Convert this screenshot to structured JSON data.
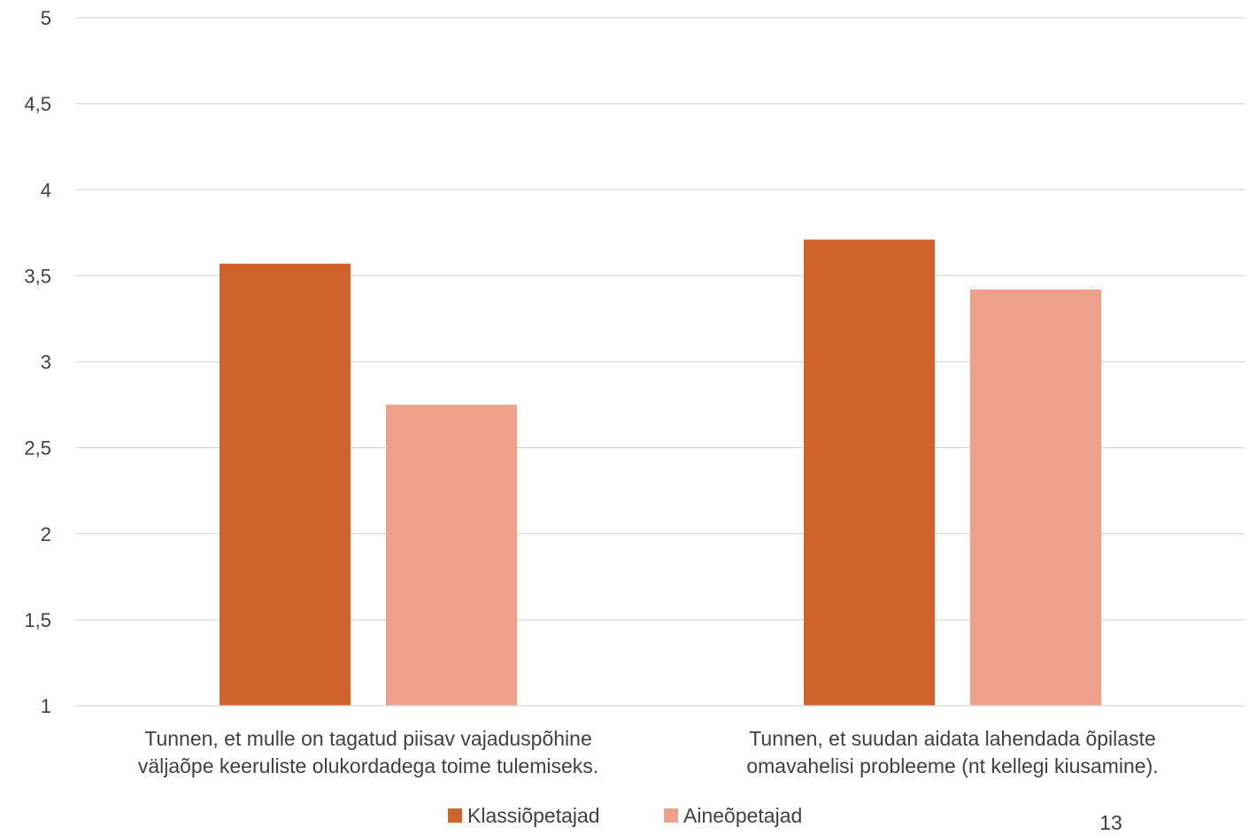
{
  "chart_data": {
    "type": "bar",
    "title": "",
    "xlabel": "",
    "ylabel": "",
    "ylim": [
      1,
      5
    ],
    "ytick_step": 0.5,
    "ytick_labels": [
      "1",
      "1,5",
      "2",
      "2,5",
      "3",
      "3,5",
      "4",
      "4,5",
      "5"
    ],
    "grid": true,
    "legend_position": "bottom",
    "categories": [
      [
        "Tunnen, et mulle on tagatud piisav vajaduspõhine",
        "väljaõpe keeruliste olukordadega toime tulemiseks."
      ],
      [
        "Tunnen, et suudan aidata lahendada õpilaste",
        "omavahelisi probleeme (nt kellegi kiusamine)."
      ]
    ],
    "series": [
      {
        "name": "Klassiõpetajad",
        "color": "#D0632C",
        "values": [
          3.57,
          3.71
        ]
      },
      {
        "name": "Aineõpetajad",
        "color": "#EDA18A",
        "values": [
          2.75,
          3.42
        ]
      }
    ]
  },
  "page_number": "13"
}
